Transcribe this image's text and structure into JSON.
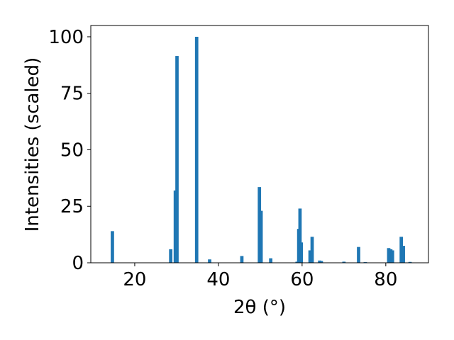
{
  "chart_data": {
    "type": "bar",
    "xlabel": "2θ (°)",
    "ylabel": "Intensities (scaled)",
    "x": [
      14.66,
      28.6,
      29.7,
      30.1,
      34.8,
      37.9,
      45.6,
      49.8,
      50.2,
      52.5,
      58.8,
      59.2,
      59.5,
      59.8,
      61.9,
      62.4,
      64.2,
      64.6,
      70.0,
      73.5,
      75.1,
      80.7,
      81.2,
      81.6,
      83.7,
      84.2,
      85.8
    ],
    "values": [
      14,
      6,
      32,
      91.5,
      100,
      1.5,
      3,
      33.5,
      23,
      2,
      0.5,
      15,
      24,
      9,
      5.5,
      11.5,
      1,
      0.8,
      0.5,
      7,
      0.3,
      6.5,
      6,
      5.5,
      11.5,
      7.5,
      0.4
    ],
    "color": "#1f77b4",
    "xlim": [
      9.5,
      90.2
    ],
    "xticks": [
      20,
      40,
      60,
      80
    ],
    "ylim": [
      0,
      105
    ],
    "yticks": [
      0,
      25,
      50,
      75,
      100
    ]
  }
}
